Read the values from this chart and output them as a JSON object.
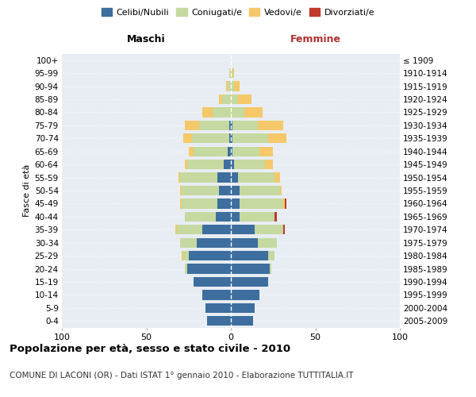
{
  "age_groups": [
    "0-4",
    "5-9",
    "10-14",
    "15-19",
    "20-24",
    "25-29",
    "30-34",
    "35-39",
    "40-44",
    "45-49",
    "50-54",
    "55-59",
    "60-64",
    "65-69",
    "70-74",
    "75-79",
    "80-84",
    "85-89",
    "90-94",
    "95-99",
    "100+"
  ],
  "birth_years": [
    "2005-2009",
    "2000-2004",
    "1995-1999",
    "1990-1994",
    "1985-1989",
    "1980-1984",
    "1975-1979",
    "1970-1974",
    "1965-1969",
    "1960-1964",
    "1955-1959",
    "1950-1954",
    "1945-1949",
    "1940-1944",
    "1935-1939",
    "1930-1934",
    "1925-1929",
    "1920-1924",
    "1915-1919",
    "1910-1914",
    "≤ 1909"
  ],
  "males": {
    "celibi": [
      14,
      15,
      17,
      22,
      26,
      25,
      20,
      17,
      9,
      8,
      7,
      8,
      4,
      2,
      1,
      1,
      0,
      0,
      0,
      0,
      0
    ],
    "coniugati": [
      0,
      0,
      0,
      0,
      1,
      3,
      10,
      15,
      18,
      21,
      22,
      22,
      22,
      20,
      22,
      18,
      11,
      5,
      2,
      1,
      0
    ],
    "vedovi": [
      0,
      0,
      0,
      0,
      0,
      1,
      0,
      1,
      0,
      1,
      1,
      1,
      1,
      3,
      5,
      8,
      6,
      2,
      1,
      0,
      0
    ],
    "divorziati": [
      0,
      0,
      0,
      0,
      0,
      0,
      0,
      0,
      0,
      0,
      0,
      0,
      0,
      0,
      0,
      0,
      0,
      0,
      0,
      0,
      0
    ]
  },
  "females": {
    "nubili": [
      13,
      14,
      17,
      22,
      23,
      22,
      16,
      14,
      5,
      5,
      5,
      4,
      2,
      1,
      1,
      1,
      0,
      0,
      0,
      0,
      0
    ],
    "coniugate": [
      0,
      0,
      0,
      0,
      1,
      4,
      11,
      17,
      21,
      26,
      24,
      22,
      18,
      16,
      21,
      15,
      8,
      4,
      2,
      1,
      0
    ],
    "vedove": [
      0,
      0,
      0,
      0,
      0,
      0,
      0,
      0,
      0,
      1,
      1,
      3,
      5,
      8,
      11,
      15,
      11,
      8,
      3,
      1,
      0
    ],
    "divorziate": [
      0,
      0,
      0,
      0,
      0,
      0,
      0,
      1,
      1,
      1,
      0,
      0,
      0,
      0,
      0,
      0,
      0,
      0,
      0,
      0,
      0
    ]
  },
  "colors": {
    "celibi": "#3d6e9e",
    "coniugati": "#c5d9a0",
    "vedovi": "#f5c86a",
    "divorziati": "#c0392b"
  },
  "xlim": 100,
  "title": "Popolazione per età, sesso e stato civile - 2010",
  "subtitle": "COMUNE DI LACONI (OR) - Dati ISTAT 1° gennaio 2010 - Elaborazione TUTTITALIA.IT",
  "ylabel": "Fasce di età",
  "label_maschi": "Maschi",
  "label_femmine": "Femmine",
  "legend_labels": [
    "Celibi/Nubili",
    "Coniugati/e",
    "Vedovi/e",
    "Divorziati/e"
  ],
  "plot_bg": "#e8edf3"
}
